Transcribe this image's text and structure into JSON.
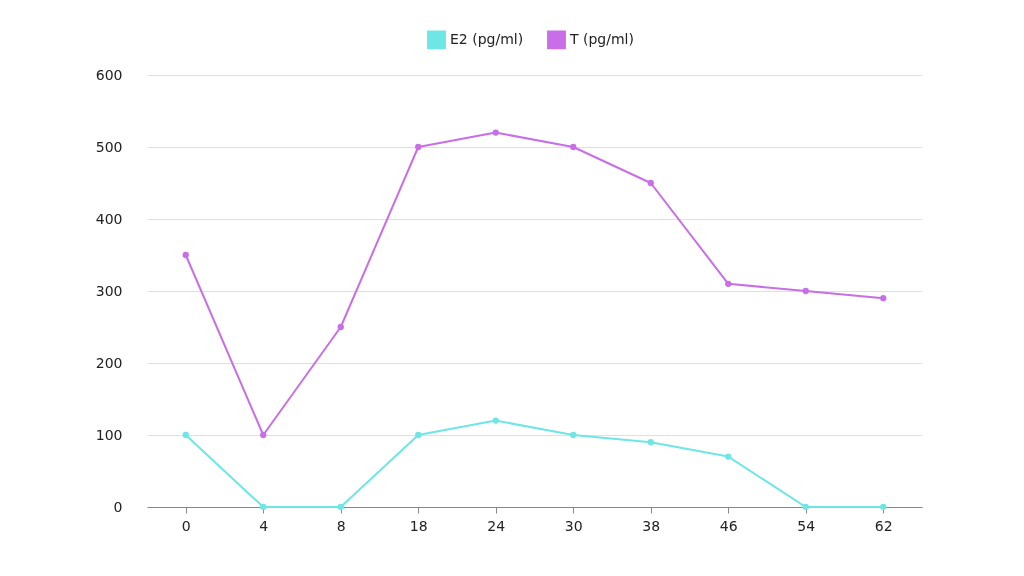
{
  "chart_data": {
    "type": "line",
    "categories": [
      "0",
      "4",
      "8",
      "18",
      "24",
      "30",
      "38",
      "46",
      "54",
      "62"
    ],
    "series": [
      {
        "name": "E2 (pg/ml)",
        "color": "#6ee6e6",
        "values": [
          100,
          0,
          0,
          100,
          120,
          100,
          90,
          70,
          0,
          0
        ]
      },
      {
        "name": "T (pg/ml)",
        "color": "#c86ee6",
        "values": [
          350,
          100,
          250,
          500,
          520,
          500,
          450,
          310,
          300,
          290
        ]
      }
    ],
    "ylim": [
      0,
      600
    ],
    "yticks": [
      0,
      100,
      200,
      300,
      400,
      500,
      600
    ],
    "grid": "y",
    "legend": "top",
    "marker": "circle",
    "line_style": "solid"
  }
}
